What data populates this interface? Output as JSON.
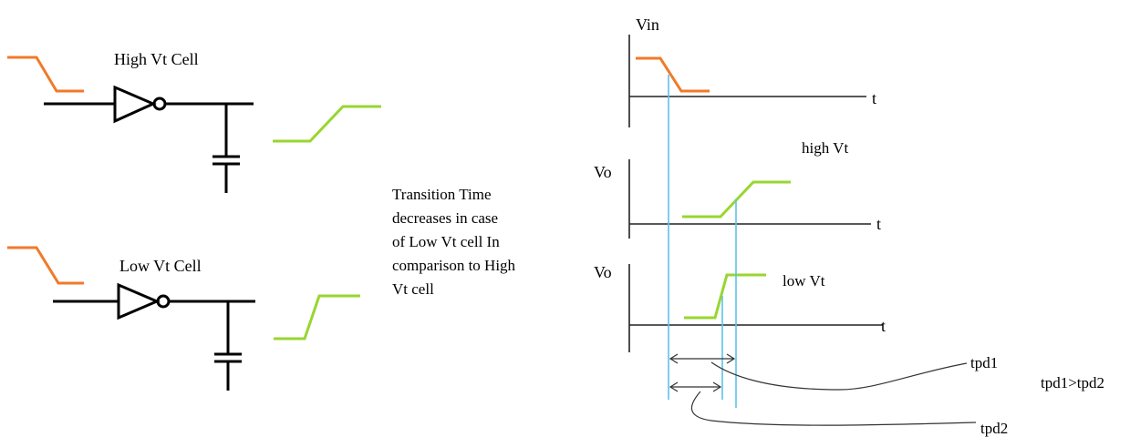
{
  "diagram": {
    "high_vt_cell_label": "High Vt Cell",
    "low_vt_cell_label": "Low Vt Cell",
    "note_lines": [
      "Transition Time",
      "decreases in case",
      "of Low Vt cell In",
      "comparison to High",
      "Vt cell"
    ],
    "graph_labels": {
      "vin": "Vin",
      "vo_high": "Vo",
      "vo_low": "Vo",
      "t_axis_1": "t",
      "t_axis_2": "t",
      "t_axis_3": "t",
      "high_vt": "high Vt",
      "low_vt": "low Vt",
      "tpd1": "tpd1",
      "tpd2": "tpd2",
      "comparison": "tpd1>tpd2"
    },
    "colors": {
      "input_waveform": "#f07a2a",
      "output_waveform": "#98d630",
      "guide_lines": "#5ec2ea"
    }
  }
}
